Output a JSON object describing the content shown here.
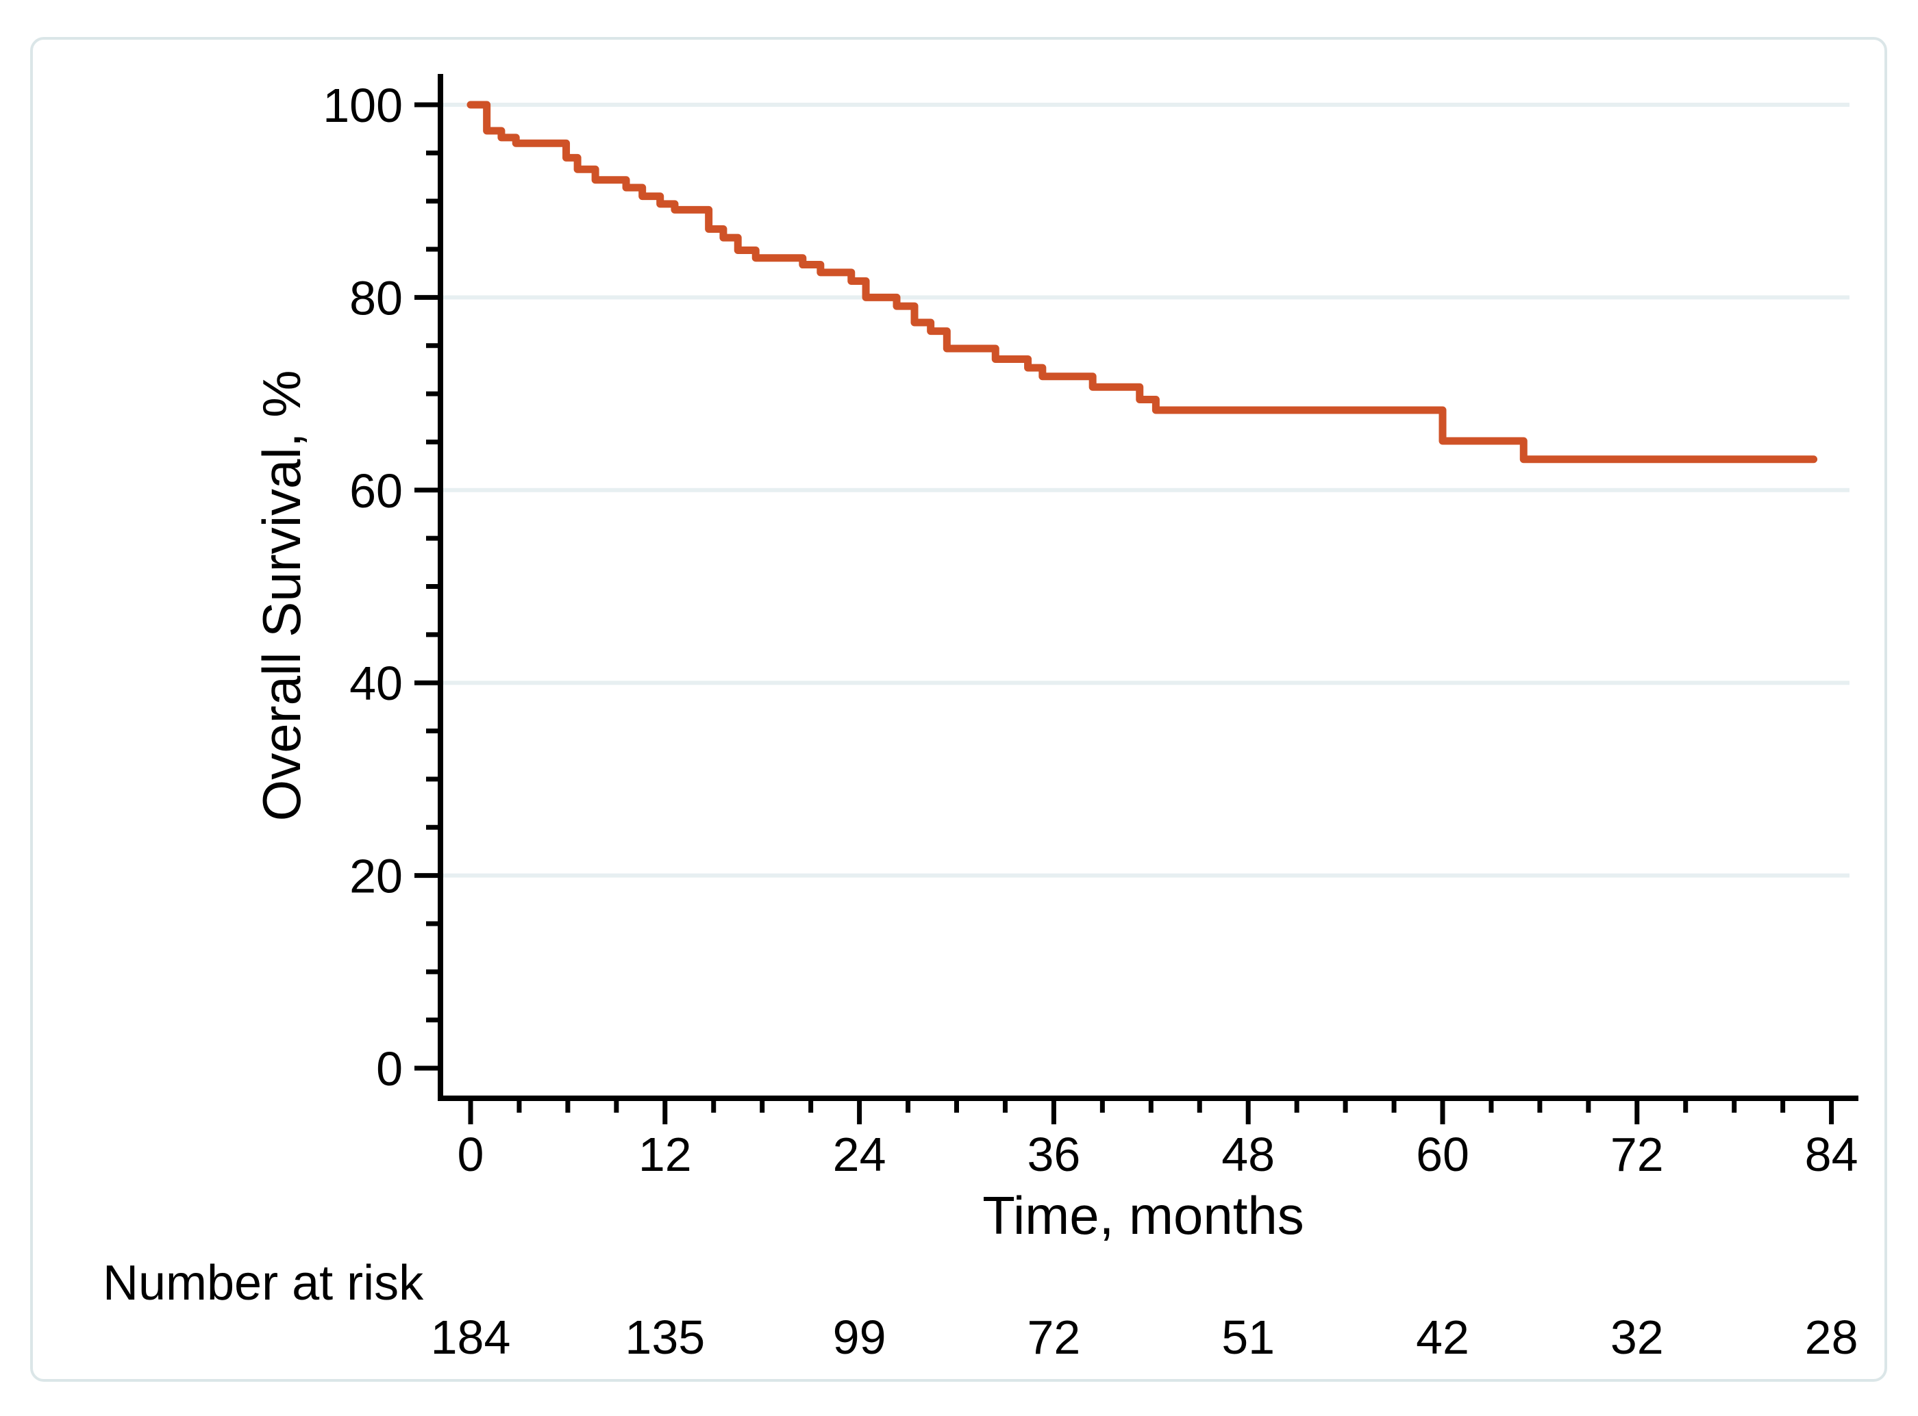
{
  "chart_data": {
    "type": "line",
    "subtype": "kaplan-meier-step",
    "title": "",
    "xlabel": "Time, months",
    "ylabel": "Overall Survival, %",
    "xlim": [
      0,
      84
    ],
    "ylim": [
      0,
      100
    ],
    "x_major_ticks": [
      0,
      12,
      24,
      36,
      48,
      60,
      72,
      84
    ],
    "x_minor_tick_interval": 3,
    "y_major_ticks": [
      0,
      20,
      40,
      60,
      80,
      100
    ],
    "y_minor_tick_interval": 5,
    "grid": "horizontal-only",
    "gridline_color": "#e7eff1",
    "frame_color": "#dbe6e8",
    "legend_position": "none",
    "series": [
      {
        "name": "Overall Survival",
        "color": "#cf5227",
        "step_points": [
          [
            0,
            100
          ],
          [
            1.0,
            97.3
          ],
          [
            1.9,
            96.6
          ],
          [
            2.8,
            96.0
          ],
          [
            5.9,
            94.5
          ],
          [
            6.6,
            93.3
          ],
          [
            7.7,
            92.2
          ],
          [
            9.6,
            91.4
          ],
          [
            10.6,
            90.5
          ],
          [
            11.7,
            89.7
          ],
          [
            12.6,
            89.1
          ],
          [
            14.7,
            87.1
          ],
          [
            15.6,
            86.2
          ],
          [
            16.5,
            84.9
          ],
          [
            17.6,
            84.1
          ],
          [
            20.5,
            83.4
          ],
          [
            21.6,
            82.6
          ],
          [
            23.5,
            81.7
          ],
          [
            24.4,
            80.0
          ],
          [
            26.3,
            79.1
          ],
          [
            27.4,
            77.4
          ],
          [
            28.4,
            76.5
          ],
          [
            29.4,
            74.7
          ],
          [
            32.4,
            73.6
          ],
          [
            34.4,
            72.7
          ],
          [
            35.3,
            71.8
          ],
          [
            38.4,
            70.7
          ],
          [
            41.3,
            69.4
          ],
          [
            42.3,
            68.3
          ],
          [
            60.0,
            65.1
          ],
          [
            65.0,
            63.2
          ]
        ],
        "end_month": 82.9
      }
    ],
    "risk_table": {
      "label": "Number at risk",
      "times": [
        0,
        12,
        24,
        36,
        48,
        60,
        72,
        84
      ],
      "counts": [
        184,
        135,
        99,
        72,
        51,
        42,
        32,
        28
      ]
    }
  }
}
